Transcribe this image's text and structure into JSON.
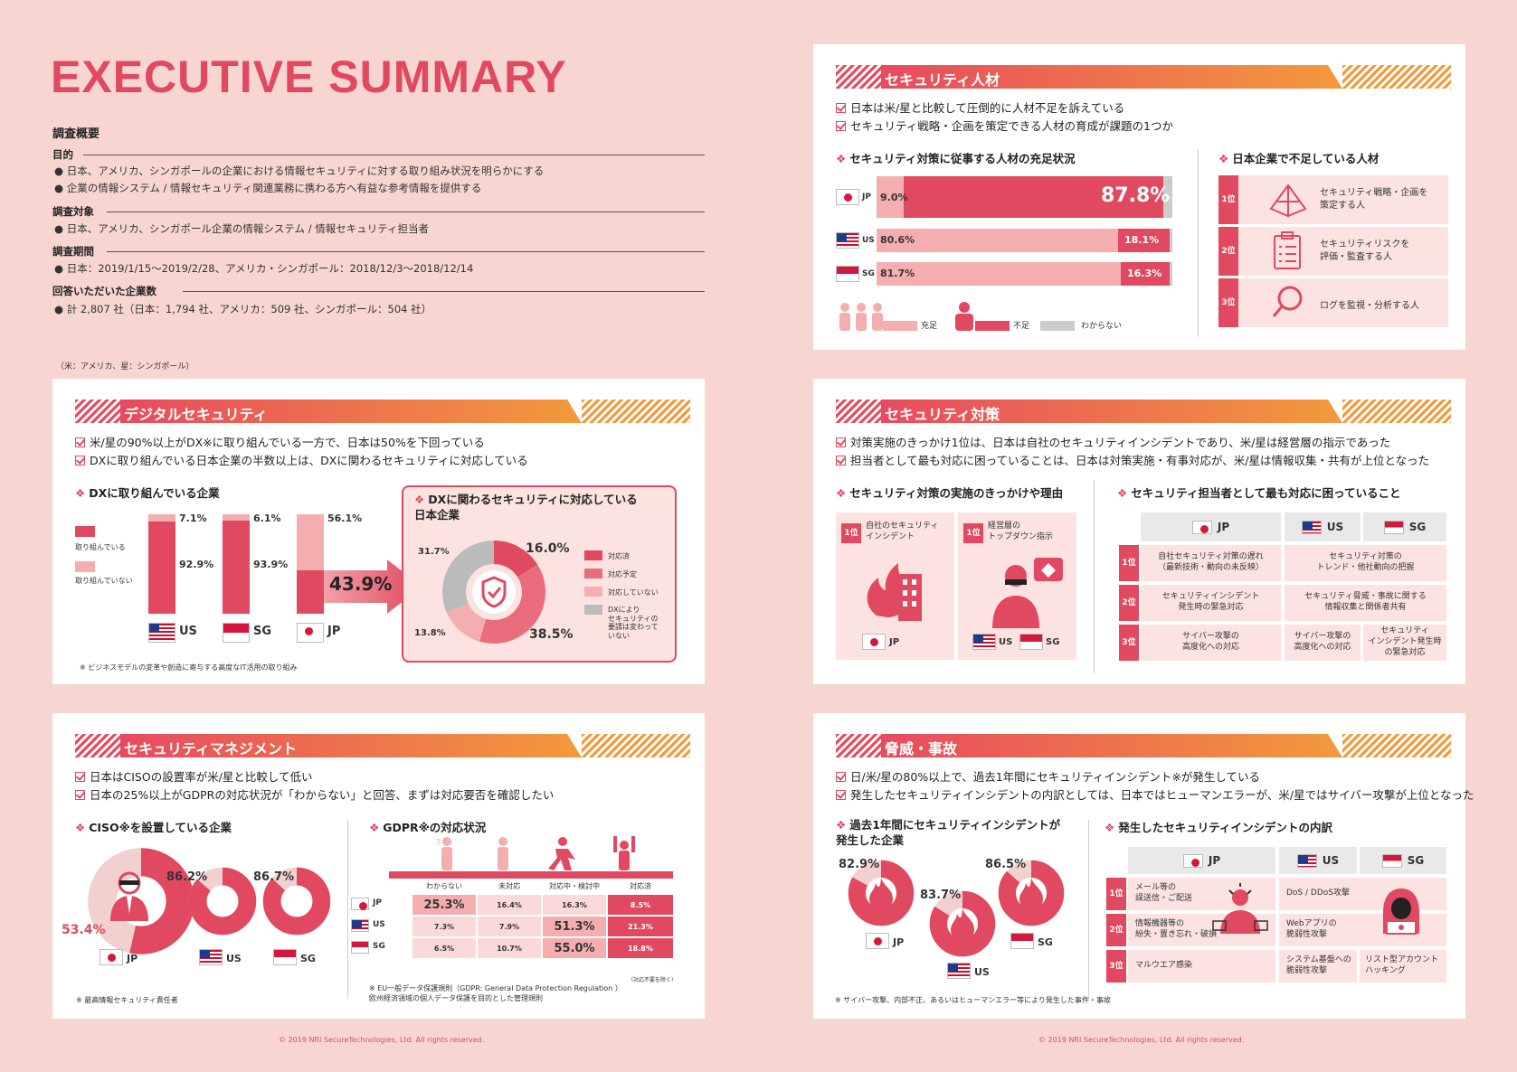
{
  "page_title": "EXECUTIVE SUMMARY",
  "overview": {
    "heading": "調査概要",
    "purpose_label": "目的",
    "purpose_items": [
      "● 日本、アメリカ、シンガポールの企業における情報セキュリティに対する取り組み状況を明らかにする",
      "● 企業の情報システム / 情報セキュリティ関連業務に携わる方へ有益な参考情報を提供する"
    ],
    "target_label": "調査対象",
    "target_item": "● 日本、アメリカ、シンガポール企業の情報システム / 情報セキュリティ担当者",
    "period_label": "調査期間",
    "period_item": "● 日本：2019/1/15～2019/2/28、アメリカ・シンガポール：2018/12/3～2018/12/14",
    "resp_label": "回答いただいた企業数",
    "resp_item": "● 計 2,807 社（日本：1,794 社、アメリカ：509 社、シンガポール：504 社）",
    "note": "（米：アメリカ、星：シンガポール）"
  },
  "talent": {
    "band": "セキュリティ人材",
    "checks": [
      "日本は米/星と比較して圧倒的に人材不足を訴えている",
      "セキュリティ戦略・企画を策定できる人材の育成が課題の1つか"
    ],
    "chart_title": "セキュリティ対策に従事する人材の充足状況",
    "rows": [
      {
        "code": "JP",
        "enough": "9.0%",
        "short": "87.8%"
      },
      {
        "code": "US",
        "enough": "80.6%",
        "short": "18.1%"
      },
      {
        "code": "SG",
        "enough": "81.7%",
        "short": "16.3%"
      }
    ],
    "legend": [
      "充足",
      "不足",
      "わからない"
    ],
    "rank_title": "日本企業で不足している人材",
    "ranks": [
      {
        "rank": "1位",
        "text": "セキュリティ戦略・企画を\n策定する人",
        "icon": "pyramid-icon"
      },
      {
        "rank": "2位",
        "text": "セキュリティリスクを\n評価・監査する人",
        "icon": "clipboard-icon"
      },
      {
        "rank": "3位",
        "text": "ログを監視・分析する人",
        "icon": "magnifier-icon"
      }
    ]
  },
  "digital": {
    "band": "デジタルセキュリティ",
    "checks": [
      "米/星の90%以上がDX※に取り組んでいる一方で、日本は50%を下回っている",
      "DXに取り組んでいる日本企業の半数以上は、DXに関わるセキュリティに対応している"
    ],
    "chart_title": "DXに取り組んでいる企業",
    "legend": [
      "取り組んでいる",
      "取り組んでいない"
    ],
    "bars": [
      {
        "code": "US",
        "yes": "92.9%",
        "no": "7.1%"
      },
      {
        "code": "SG",
        "yes": "93.9%",
        "no": "6.1%"
      },
      {
        "code": "JP",
        "yes": "43.9%",
        "no": "56.1%"
      }
    ],
    "donut_title": "DXに関わるセキュリティに対応している\n日本企業",
    "donut_vals": [
      "16.0%",
      "38.5%",
      "13.8%",
      "31.7%"
    ],
    "donut_legend": [
      "対応済",
      "対応予定",
      "対応していない",
      "DXにより\nセキュリティの\n要請は変わって\nいない"
    ],
    "note": "※ ビジネスモデルの変革や創造に寄与する高度なIT活用の取り組み"
  },
  "measures": {
    "band": "セキュリティ対策",
    "checks": [
      "対策実施のきっかけ1位は、日本は自社のセキュリティインシデントであり、米/星は経営層の指示であった",
      "担当者として最も対応に困っていることは、日本は対策実施・有事対応が、米/星は情報収集・共有が上位となった"
    ],
    "trigger_title": "セキュリティ対策の実施のきっかけや理由",
    "trigger_jp": "自社のセキュリティ\nインシデント",
    "trigger_ussg": "経営層の\nトップダウン指示",
    "rank1": "1位",
    "trouble_title": "セキュリティ担当者として最も対応に困っていること",
    "cols": [
      "JP",
      "US",
      "SG"
    ],
    "trouble_rows": [
      {
        "rank": "1位",
        "jp": "自社セキュリティ対策の遅れ\n（最新技術・動向の未反映）",
        "ussg": "セキュリティ対策の\nトレンド・他社動向の把握"
      },
      {
        "rank": "2位",
        "jp": "セキュリティインシデント\n発生時の緊急対応",
        "ussg": "セキュリティ脅威・事故に関する\n情報収集と関係者共有"
      },
      {
        "rank": "3位",
        "jp": "サイバー攻撃の\n高度化への対応",
        "us": "サイバー攻撃の\n高度化への対応",
        "sg": "セキュリティ\nインシデント発生時\nの緊急対応"
      }
    ]
  },
  "management": {
    "band": "セキュリティマネジメント",
    "checks": [
      "日本はCISOの設置率が米/星と比較して低い",
      "日本の25%以上がGDPRの対応状況が「わからない」と回答、まずは対応要否を確認したい"
    ],
    "ciso_title": "CISO※を設置している企業",
    "ciso": [
      {
        "code": "JP",
        "val": "53.4%"
      },
      {
        "code": "US",
        "val": "86.2%"
      },
      {
        "code": "SG",
        "val": "86.7%"
      }
    ],
    "ciso_note": "※ 最高情報セキュリティ責任者",
    "gdpr_title": "GDPR※の対応状況",
    "gdpr_cols": [
      "わからない",
      "未対応",
      "対応中・検討中",
      "対応済"
    ],
    "gdpr_rows": [
      {
        "code": "JP",
        "vals": [
          "25.3%",
          "16.4%",
          "16.3%",
          "8.5%"
        ]
      },
      {
        "code": "US",
        "vals": [
          "7.3%",
          "7.9%",
          "51.3%",
          "21.3%"
        ]
      },
      {
        "code": "SG",
        "vals": [
          "6.5%",
          "10.7%",
          "55.0%",
          "18.8%"
        ]
      }
    ],
    "gdpr_excl": "（対応不要を除く）",
    "gdpr_note": "※ EU一般データ保護規則（GDPR: General Data Protection Regulation ）\n欧州経済領域の個人データ保護を目的とした管理規則"
  },
  "threats": {
    "band": "脅威・事故",
    "checks": [
      "日/米/星の80%以上で、過去1年間にセキュリティインシデント※が発生している",
      "発生したセキュリティインシデントの内訳としては、日本ではヒューマンエラーが、米/星ではサイバー攻撃が上位となった"
    ],
    "inc_title": "過去1年間にセキュリティインシデントが\n発生した企業",
    "inc": [
      {
        "code": "JP",
        "val": "82.9%"
      },
      {
        "code": "US",
        "val": "83.7%"
      },
      {
        "code": "SG",
        "val": "86.5%"
      }
    ],
    "break_title": "発生したセキュリティインシデントの内訳",
    "cols": [
      "JP",
      "US",
      "SG"
    ],
    "rows": [
      {
        "rank": "1位",
        "jp": "メール等の\n誤送信・ご配送",
        "ussg": "DoS / DDoS攻撃"
      },
      {
        "rank": "2位",
        "jp": "情報機器等の\n紛失・置き忘れ・破損",
        "ussg": "Webアプリの\n脆弱性攻撃"
      },
      {
        "rank": "3位",
        "jp": "マルウエア感染",
        "us": "システム基盤への\n脆弱性攻撃",
        "sg": "リスト型アカウント\nハッキング"
      }
    ],
    "note": "※ サイバー攻撃、内部不正、あるいはヒューマンエラー等により発生した事件・事故"
  },
  "copyright": "© 2019 NRI SecureTechnologies, Ltd. All rights reserved.",
  "colors": {
    "accent": "#e04960",
    "light": "#f5aeb0",
    "bg": "#f7d6d1",
    "orange": "#f39a3c"
  }
}
